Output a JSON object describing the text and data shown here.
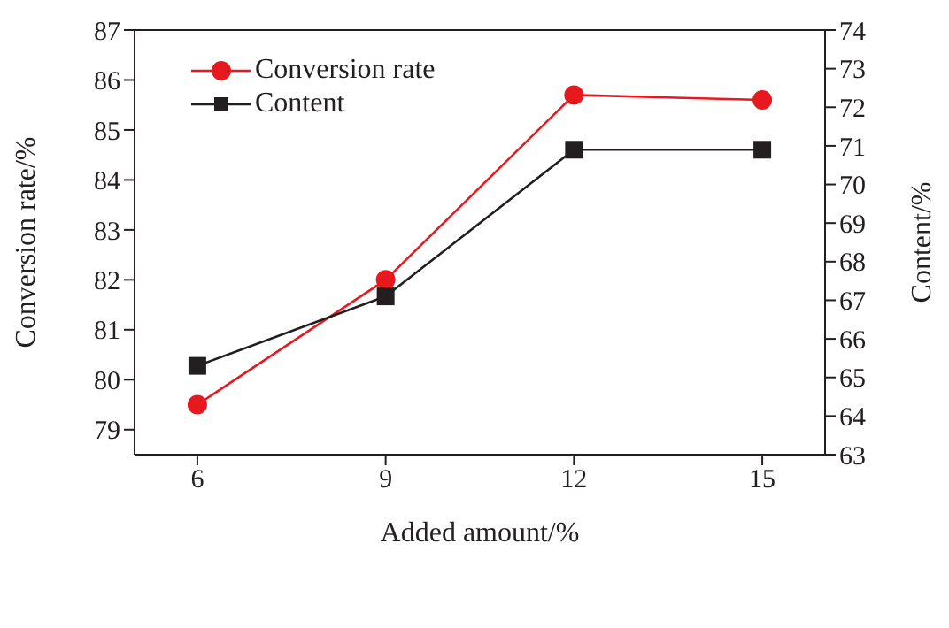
{
  "chart_data": {
    "type": "line",
    "xlabel": "Added amount/%",
    "ylabel": "Conversion rate/%",
    "y2label": "Content/%",
    "x": [
      6,
      9,
      12,
      15
    ],
    "xlim": [
      5,
      16
    ],
    "xticks": [
      6,
      9,
      12,
      15
    ],
    "ylim": [
      78.5,
      87
    ],
    "yticks": [
      79,
      80,
      81,
      82,
      83,
      84,
      85,
      86,
      87
    ],
    "y2lim": [
      63,
      74
    ],
    "y2ticks": [
      63,
      64,
      65,
      66,
      67,
      68,
      69,
      70,
      71,
      72,
      73,
      74
    ],
    "series": [
      {
        "name": "Conversion rate",
        "color": "#e8191e",
        "marker": "circle",
        "values": [
          79.5,
          82.0,
          85.7,
          85.6
        ]
      },
      {
        "name": "Content",
        "color": "#231f20",
        "marker": "square",
        "axis": "y2",
        "values": [
          65.3,
          67.1,
          70.9,
          70.9
        ]
      }
    ],
    "legend": "top left",
    "line_style": "solid"
  }
}
